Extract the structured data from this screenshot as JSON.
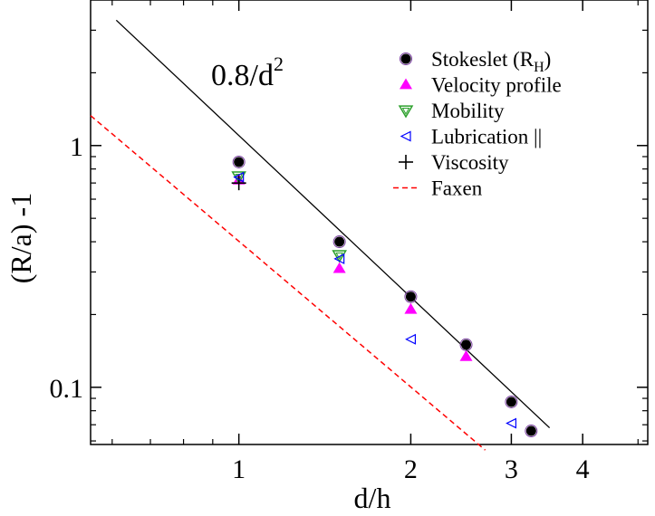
{
  "chart_data": {
    "type": "scatter",
    "xscale": "log",
    "yscale": "log",
    "xlim": [
      0.55,
      5.2
    ],
    "ylim": [
      0.058,
      4.0
    ],
    "xlabel": "d/h",
    "ylabel": "(R/a) -1",
    "x_ticks": [
      1,
      2,
      3,
      4
    ],
    "y_ticks": [
      0.1,
      1
    ],
    "y_tick_labels": [
      "0.1",
      "1"
    ],
    "grid": false,
    "legend_position": "top-right",
    "annotation": {
      "base": "0.8/d",
      "exponent": "2"
    },
    "series": [
      {
        "name": "Stokeslet (R_H)",
        "legend_main": "Stokeslet (R",
        "legend_sub": "H",
        "legend_close": ")",
        "marker": "circle",
        "color": "#000000",
        "points": [
          [
            1.0,
            0.855
          ],
          [
            1.5,
            0.4
          ],
          [
            2.0,
            0.237
          ],
          [
            2.5,
            0.15
          ],
          [
            3.0,
            0.087
          ],
          [
            3.25,
            0.066
          ]
        ]
      },
      {
        "name": "Velocity profile",
        "marker": "triangle-up",
        "color": "#ff00ff",
        "points": [
          [
            1.0,
            0.72
          ],
          [
            1.5,
            0.31
          ],
          [
            2.0,
            0.21
          ],
          [
            2.5,
            0.134
          ]
        ]
      },
      {
        "name": "Mobility",
        "marker": "triangle-down-open",
        "color": "#2ca02c",
        "points": [
          [
            1.0,
            0.745
          ],
          [
            1.5,
            0.352
          ]
        ]
      },
      {
        "name": "Lubrication ||",
        "marker": "triangle-left-open",
        "color": "#0000ff",
        "points": [
          [
            1.0,
            0.74
          ],
          [
            1.5,
            0.34
          ],
          [
            2.0,
            0.158
          ],
          [
            3.0,
            0.071
          ]
        ]
      },
      {
        "name": "Viscosity",
        "marker": "plus",
        "color": "#000000",
        "points": [
          [
            1.0,
            0.7
          ]
        ]
      },
      {
        "name": "Faxen",
        "marker": "dashed-line",
        "color": "#ff0000",
        "line": [
          [
            0.55,
            1.33
          ],
          [
            2.7,
            0.055
          ]
        ]
      }
    ],
    "fit_line": {
      "formula": "0.8/d^2",
      "color": "#000000",
      "points": [
        [
          0.61,
          3.3
        ],
        [
          3.5,
          0.068
        ]
      ]
    }
  }
}
